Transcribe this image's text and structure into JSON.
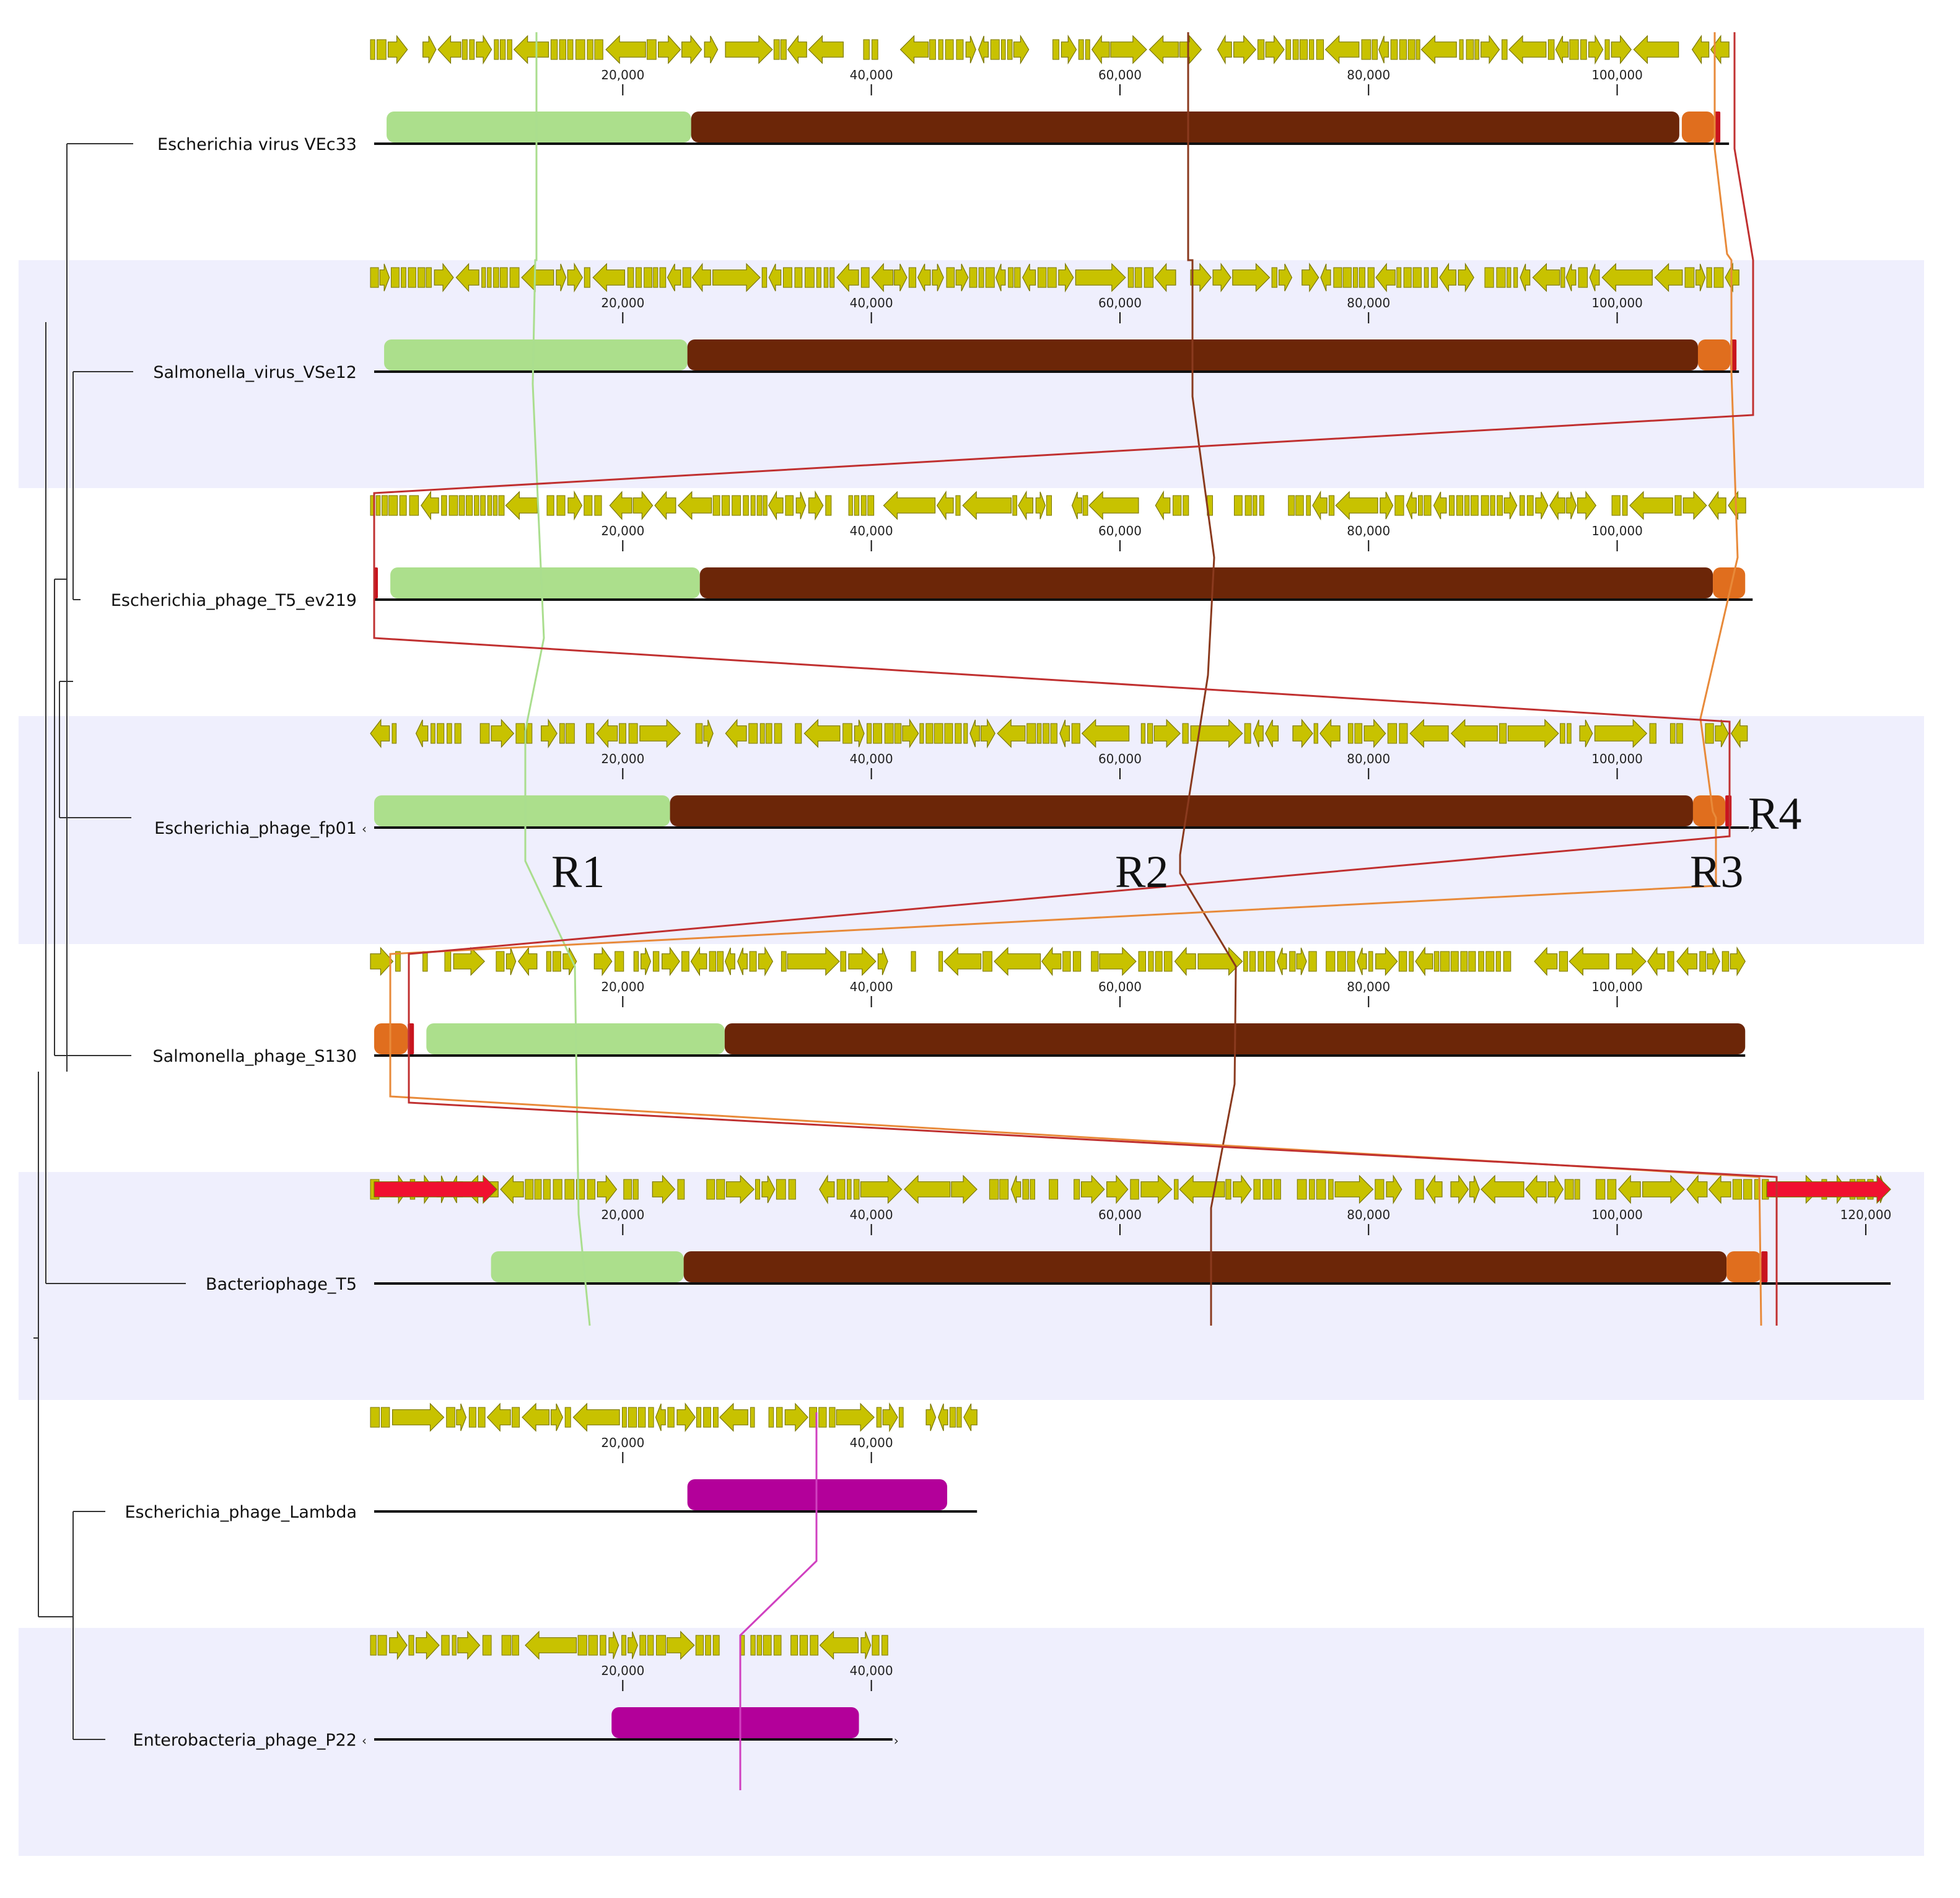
{
  "figure": {
    "colors": {
      "band": "#efeffd",
      "gene_fill": "#c8c200",
      "gene_stroke": "#7a7600",
      "axis": "#111111",
      "tree": "#333333",
      "lcb_green": "#acdf8c",
      "lcb_brown": "#6c2608",
      "lcb_orange": "#e06e1e",
      "lcb_magenta": "#b3009a",
      "lcb_small_red": "#c8141e",
      "red_gene": "#f01030",
      "trace_green": "#aade8e",
      "trace_brown": "#8a3a1e",
      "trace_orange": "#e88a3a",
      "trace_red": "#c03030",
      "trace_magenta": "#d040c0"
    },
    "tick_labels": [
      "20,000",
      "40,000",
      "60,000",
      "80,000",
      "100,000",
      "120,000"
    ],
    "region_labels": [
      "R1",
      "R2",
      "R3",
      "R4"
    ],
    "genomes": [
      {
        "name": "Escherichia virus VEc33",
        "length": 109000,
        "ticks": [
          20000,
          40000,
          60000,
          80000,
          100000
        ],
        "end_marker": false,
        "start_marker": false,
        "blocks": [
          {
            "color": "lcb_green",
            "start": 1000,
            "end": 25500
          },
          {
            "color": "lcb_brown",
            "start": 25500,
            "end": 105000
          },
          {
            "color": "lcb_orange",
            "start": 105200,
            "end": 107800
          },
          {
            "color": "lcb_small_red",
            "start": 107800,
            "end": 108300
          }
        ]
      },
      {
        "name": "Salmonella_virus_VSe12",
        "length": 109800,
        "ticks": [
          20000,
          40000,
          60000,
          80000,
          100000
        ],
        "end_marker": false,
        "start_marker": false,
        "blocks": [
          {
            "color": "lcb_green",
            "start": 800,
            "end": 25200
          },
          {
            "color": "lcb_brown",
            "start": 25200,
            "end": 106500
          },
          {
            "color": "lcb_orange",
            "start": 106500,
            "end": 109100
          },
          {
            "color": "lcb_small_red",
            "start": 109100,
            "end": 109600
          }
        ]
      },
      {
        "name": "Escherichia_phage_T5_ev219",
        "length": 110900,
        "ticks": [
          20000,
          40000,
          60000,
          80000,
          100000
        ],
        "end_marker": false,
        "start_marker": false,
        "blocks": [
          {
            "color": "lcb_small_red",
            "start": 0,
            "end": 300
          },
          {
            "color": "lcb_green",
            "start": 1300,
            "end": 26200
          },
          {
            "color": "lcb_brown",
            "start": 26200,
            "end": 107700
          },
          {
            "color": "lcb_orange",
            "start": 107700,
            "end": 110300
          }
        ]
      },
      {
        "name": "Escherichia_phage_fp01",
        "length": 110600,
        "ticks": [
          20000,
          40000,
          60000,
          80000,
          100000
        ],
        "end_marker": true,
        "start_marker": true,
        "blocks": [
          {
            "color": "lcb_green",
            "start": 0,
            "end": 23800
          },
          {
            "color": "lcb_brown",
            "start": 23800,
            "end": 106100
          },
          {
            "color": "lcb_orange",
            "start": 106100,
            "end": 108700
          },
          {
            "color": "lcb_small_red",
            "start": 108700,
            "end": 109200
          }
        ]
      },
      {
        "name": "Salmonella_phage_S130",
        "length": 110300,
        "ticks": [
          20000,
          40000,
          60000,
          80000,
          100000
        ],
        "end_marker": false,
        "start_marker": false,
        "blocks": [
          {
            "color": "lcb_orange",
            "start": 0,
            "end": 2700
          },
          {
            "color": "lcb_small_red",
            "start": 2700,
            "end": 3200
          },
          {
            "color": "lcb_green",
            "start": 4200,
            "end": 28200
          },
          {
            "color": "lcb_brown",
            "start": 28200,
            "end": 110300
          }
        ]
      },
      {
        "name": "Bacteriophage_T5",
        "length": 122000,
        "ticks": [
          20000,
          40000,
          60000,
          80000,
          100000,
          120000
        ],
        "end_marker": false,
        "start_marker": false,
        "blocks": [
          {
            "color": "lcb_green",
            "start": 9400,
            "end": 24900
          },
          {
            "color": "lcb_brown",
            "start": 24900,
            "end": 108800
          },
          {
            "color": "lcb_orange",
            "start": 108800,
            "end": 111600
          },
          {
            "color": "lcb_small_red",
            "start": 111600,
            "end": 112100
          }
        ]
      },
      {
        "name": "Escherichia_phage_Lambda",
        "length": 48500,
        "ticks": [
          20000,
          40000
        ],
        "end_marker": false,
        "start_marker": false,
        "blocks": [
          {
            "color": "lcb_magenta",
            "start": 25200,
            "end": 46100
          }
        ]
      },
      {
        "name": "Enterobacteria_phage_P22",
        "length": 41700,
        "ticks": [
          20000,
          40000
        ],
        "end_marker": true,
        "start_marker": true,
        "blocks": [
          {
            "color": "lcb_magenta",
            "start": 19100,
            "end": 39000
          }
        ]
      }
    ]
  }
}
